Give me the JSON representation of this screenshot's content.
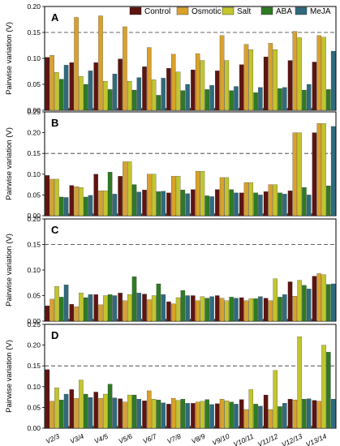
{
  "figure": {
    "ylabel": "Pairwise variation (V)",
    "threshold": 0.15
  },
  "colors": {
    "Control": "#5e1410",
    "Osmotic": "#d9a12c",
    "Salt": "#c2c52c",
    "ABA": "#2f7a24",
    "MeJA": "#2f6a7e"
  },
  "chart_data": [
    {
      "type": "bar",
      "panel": "A",
      "categories": [
        "V2/3",
        "V3/4",
        "V4/5",
        "V5/6",
        "V6/7",
        "V7/8",
        "V8/9",
        "V9/10",
        "V10/11",
        "V11/12",
        "V12/13",
        "V13/14"
      ],
      "ylim": [
        0,
        0.2
      ],
      "yticks": [
        0.0,
        0.05,
        0.1,
        0.15,
        0.2
      ],
      "reference_line": 0.15,
      "legend": "top-right",
      "series": [
        {
          "name": "Control",
          "values": [
            0.102,
            0.092,
            0.092,
            0.099,
            0.084,
            0.081,
            0.078,
            0.076,
            0.088,
            0.103,
            0.096,
            0.093
          ]
        },
        {
          "name": "Osmotic",
          "values": [
            0.106,
            0.179,
            0.182,
            0.161,
            0.121,
            0.108,
            0.109,
            0.144,
            0.127,
            0.129,
            0.152,
            0.144
          ]
        },
        {
          "name": "Salt",
          "values": [
            0.073,
            0.065,
            0.056,
            0.056,
            0.059,
            0.074,
            0.096,
            0.096,
            0.117,
            0.117,
            0.14,
            0.141
          ]
        },
        {
          "name": "ABA",
          "values": [
            0.06,
            0.05,
            0.04,
            0.039,
            0.029,
            0.038,
            0.04,
            0.038,
            0.034,
            0.042,
            0.039,
            0.04
          ]
        },
        {
          "name": "MeJA",
          "values": [
            0.087,
            0.076,
            0.07,
            0.063,
            0.062,
            0.05,
            0.048,
            0.046,
            0.044,
            0.044,
            0.05,
            0.114
          ]
        }
      ]
    },
    {
      "type": "bar",
      "panel": "B",
      "categories": [
        "V2/3",
        "V3/4",
        "V4/5",
        "V5/6",
        "V6/7",
        "V7/8",
        "V8/9",
        "V9/10",
        "V10/11",
        "V11/12",
        "V12/13",
        "V13/14"
      ],
      "ylim": [
        0,
        0.25
      ],
      "yticks": [
        0.0,
        0.05,
        0.1,
        0.15,
        0.2,
        0.25
      ],
      "reference_line": 0.15,
      "series": [
        {
          "name": "Control",
          "values": [
            0.097,
            0.073,
            0.1,
            0.095,
            0.062,
            0.055,
            0.063,
            0.063,
            0.055,
            0.058,
            0.06,
            0.2
          ]
        },
        {
          "name": "Osmotic",
          "values": [
            0.088,
            0.07,
            0.06,
            0.13,
            0.1,
            0.095,
            0.107,
            0.092,
            0.08,
            0.075,
            0.2,
            0.222
          ]
        },
        {
          "name": "Salt",
          "values": [
            0.088,
            0.068,
            0.06,
            0.13,
            0.1,
            0.095,
            0.107,
            0.092,
            0.08,
            0.075,
            0.2,
            0.222
          ]
        },
        {
          "name": "ABA",
          "values": [
            0.045,
            0.045,
            0.105,
            0.075,
            0.058,
            0.062,
            0.048,
            0.063,
            0.055,
            0.055,
            0.068,
            0.072
          ]
        },
        {
          "name": "MeJA",
          "values": [
            0.044,
            0.049,
            0.052,
            0.057,
            0.059,
            0.053,
            0.046,
            0.055,
            0.05,
            0.052,
            0.05,
            0.215
          ]
        }
      ]
    },
    {
      "type": "bar",
      "panel": "C",
      "categories": [
        "V2/3",
        "V3/4",
        "V4/5",
        "V5/6",
        "V6/7",
        "V7/8",
        "V8/9",
        "V9/10",
        "V10/11",
        "V11/12",
        "V12/13",
        "V13/14"
      ],
      "ylim": [
        0,
        0.2
      ],
      "yticks": [
        0.0,
        0.05,
        0.1,
        0.15,
        0.2
      ],
      "reference_line": 0.15,
      "series": [
        {
          "name": "Control",
          "values": [
            0.03,
            0.033,
            0.052,
            0.055,
            0.053,
            0.038,
            0.05,
            0.05,
            0.046,
            0.045,
            0.077,
            0.088
          ]
        },
        {
          "name": "Osmotic",
          "values": [
            0.043,
            0.028,
            0.032,
            0.04,
            0.042,
            0.034,
            0.04,
            0.045,
            0.04,
            0.04,
            0.049,
            0.093
          ]
        },
        {
          "name": "Salt",
          "values": [
            0.068,
            0.055,
            0.05,
            0.052,
            0.05,
            0.046,
            0.048,
            0.04,
            0.044,
            0.083,
            0.08,
            0.091
          ]
        },
        {
          "name": "ABA",
          "values": [
            0.047,
            0.046,
            0.052,
            0.087,
            0.073,
            0.06,
            0.045,
            0.047,
            0.044,
            0.047,
            0.07,
            0.072
          ]
        },
        {
          "name": "MeJA",
          "values": [
            0.071,
            0.052,
            0.05,
            0.055,
            0.052,
            0.05,
            0.048,
            0.045,
            0.048,
            0.052,
            0.063,
            0.073
          ]
        }
      ]
    },
    {
      "type": "bar",
      "panel": "D",
      "categories": [
        "V2/3",
        "V3/4",
        "V4/5",
        "V5/6",
        "V6/7",
        "V7/8",
        "V8/9",
        "V9/10",
        "V10/11",
        "V11/12",
        "V12/13",
        "V13/14"
      ],
      "ylim": [
        0,
        0.25
      ],
      "yticks": [
        0.0,
        0.05,
        0.1,
        0.15,
        0.2,
        0.25
      ],
      "reference_line": 0.15,
      "series": [
        {
          "name": "Control",
          "values": [
            0.141,
            0.093,
            0.087,
            0.071,
            0.066,
            0.058,
            0.06,
            0.059,
            0.069,
            0.08,
            0.07,
            0.067
          ]
        },
        {
          "name": "Osmotic",
          "values": [
            0.065,
            0.072,
            0.072,
            0.063,
            0.09,
            0.072,
            0.063,
            0.07,
            0.045,
            0.045,
            0.068,
            0.065
          ]
        },
        {
          "name": "Salt",
          "values": [
            0.097,
            0.116,
            0.082,
            0.08,
            0.07,
            0.067,
            0.065,
            0.066,
            0.093,
            0.139,
            0.22,
            0.2
          ]
        },
        {
          "name": "ABA",
          "values": [
            0.068,
            0.082,
            0.106,
            0.08,
            0.068,
            0.07,
            0.069,
            0.063,
            0.058,
            0.052,
            0.07,
            0.183
          ]
        },
        {
          "name": "MeJA",
          "values": [
            0.082,
            0.074,
            0.073,
            0.07,
            0.061,
            0.06,
            0.057,
            0.058,
            0.053,
            0.06,
            0.071,
            0.07
          ]
        }
      ]
    }
  ]
}
